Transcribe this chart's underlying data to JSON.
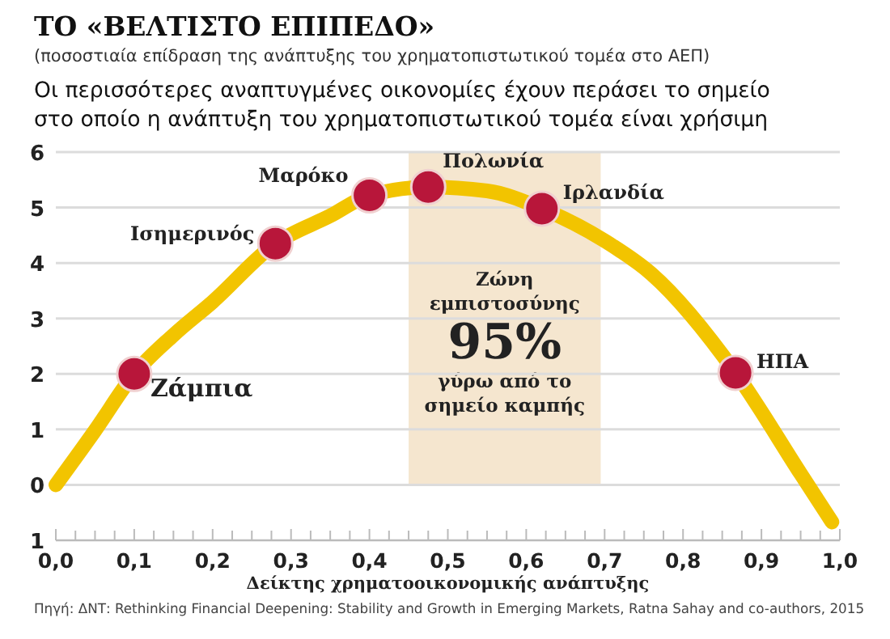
{
  "chart_data": {
    "type": "line",
    "title": "ΤΟ «ΒΕΛΤΙΣΤΟ ΕΠΙΠΕΔΟ»",
    "subtitle": "(ποσοστιαία επίδραση της ανάπτυξης του χρηματοπιστωτικού τομέα στο ΑΕΠ)",
    "xlabel": "Δείκτης χρηματοοικονομικής ανάπτυξης",
    "xlim": [
      0,
      1.0
    ],
    "ylim": [
      -1,
      6
    ],
    "xticks": [
      {
        "value": 0,
        "label": "0,0"
      },
      {
        "value": 0.025,
        "label": null
      },
      {
        "value": 0.05,
        "label": null
      },
      {
        "value": 0.075,
        "label": null
      },
      {
        "value": 0.1,
        "label": "0,1"
      },
      {
        "value": 0.125,
        "label": null
      },
      {
        "value": 0.15,
        "label": null
      },
      {
        "value": 0.175,
        "label": null
      },
      {
        "value": 0.2,
        "label": "0,2"
      },
      {
        "value": 0.225,
        "label": null
      },
      {
        "value": 0.25,
        "label": null
      },
      {
        "value": 0.275,
        "label": null
      },
      {
        "value": 0.3,
        "label": "0,3"
      },
      {
        "value": 0.325,
        "label": null
      },
      {
        "value": 0.35,
        "label": null
      },
      {
        "value": 0.375,
        "label": null
      },
      {
        "value": 0.4,
        "label": "0,4"
      },
      {
        "value": 0.425,
        "label": null
      },
      {
        "value": 0.45,
        "label": null
      },
      {
        "value": 0.475,
        "label": null
      },
      {
        "value": 0.5,
        "label": "0,5"
      },
      {
        "value": 0.525,
        "label": null
      },
      {
        "value": 0.55,
        "label": null
      },
      {
        "value": 0.575,
        "label": null
      },
      {
        "value": 0.6,
        "label": "0,6"
      },
      {
        "value": 0.625,
        "label": null
      },
      {
        "value": 0.65,
        "label": null
      },
      {
        "value": 0.675,
        "label": null
      },
      {
        "value": 0.7,
        "label": "0,7"
      },
      {
        "value": 0.725,
        "label": null
      },
      {
        "value": 0.75,
        "label": null
      },
      {
        "value": 0.775,
        "label": null
      },
      {
        "value": 0.8,
        "label": "0,8"
      },
      {
        "value": 0.825,
        "label": null
      },
      {
        "value": 0.85,
        "label": null
      },
      {
        "value": 0.875,
        "label": null
      },
      {
        "value": 0.9,
        "label": "0,9"
      },
      {
        "value": 0.925,
        "label": null
      },
      {
        "value": 0.95,
        "label": null
      },
      {
        "value": 0.975,
        "label": null
      },
      {
        "value": 1.0,
        "label": "1,0"
      }
    ],
    "yticks": [
      {
        "value": -1,
        "label": "1"
      },
      0,
      1,
      2,
      3,
      4,
      5,
      6
    ],
    "grid": "y",
    "line_style": "solid",
    "series": [
      {
        "color": "#f2c400",
        "x": [
          0,
          0.05,
          0.1,
          0.15,
          0.2,
          0.28,
          0.35,
          0.4,
          0.475,
          0.55,
          0.62,
          0.7,
          0.76,
          0.867,
          0.95,
          0.99
        ],
        "values": [
          0,
          0.98,
          2,
          2.7,
          3.3,
          4.35,
          4.85,
          5.22,
          5.37,
          5.3,
          4.98,
          4.4,
          3.8,
          2.02,
          0.2,
          -0.67
        ]
      },
      {
        "type": "scatter",
        "color": "#b8163a",
        "marker": "circle",
        "x": [
          0.1,
          0.28,
          0.4,
          0.475,
          0.62,
          0.867
        ],
        "values": [
          2,
          4.35,
          5.22,
          5.37,
          4.98,
          2.02
        ]
      }
    ],
    "bands": [
      {
        "axis": "x",
        "from": 0.45,
        "to": 0.695,
        "color": "#f5e6cf",
        "label": "Ζώνη\nεμπιστοσύνης\n95%\nγύρω από το\nσημείο καμπής"
      }
    ],
    "annotations": [
      "Οι περισσότερες αναπτυγμένες οικονομίες έχουν περάσει το σημείο στο οποίο η ανάπτυξη του χρηματοπιστωτικού τομέα είναι χρήσιμη",
      {
        "text": "Ζάμπια",
        "x": 0.1,
        "y": 2
      },
      {
        "text": "Ισημερινός",
        "x": 0.28,
        "y": 4.35
      },
      {
        "text": "Μαρόκο",
        "x": 0.4,
        "y": 5.22
      },
      {
        "text": "Πολωνία",
        "x": 0.475,
        "y": 5.37
      },
      {
        "text": "Ιρλανδία",
        "x": 0.62,
        "y": 4.98
      },
      {
        "text": "ΗΠΑ",
        "x": 0.867,
        "y": 2.02
      },
      "Πηγή: ΔΝΤ: Rethinking Financial Deepening: Stability and Growth in Emerging Markets, Ratna Sahay and co-authors, 2015"
    ]
  }
}
